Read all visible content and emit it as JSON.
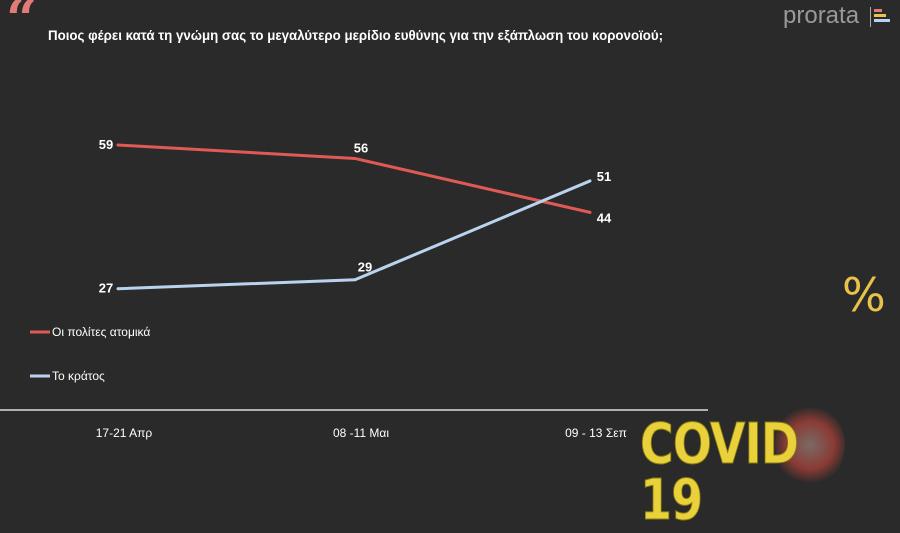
{
  "header": {
    "quote_mark": "“",
    "title": "Ποιος φέρει κατά τη γνώμη σας το μεγαλύτερο μερίδιο ευθύνης για την εξάπλωση του κορονοϊού;",
    "logo": "prorata"
  },
  "decor": {
    "percent": "%",
    "covid": "COVID 19"
  },
  "chart_data": {
    "type": "line",
    "title": "Ποιος φέρει κατά τη γνώμη σας το μεγαλύτερο μερίδιο ευθύνης για την εξάπλωση του κορονοϊού;",
    "categories": [
      "17-21 Απρ",
      "08 -11 Μαι",
      "09 - 13 Σεπ"
    ],
    "series": [
      {
        "name": "Οι πολίτες ατομικά",
        "values": [
          59,
          56,
          44
        ],
        "color": "#e05a55"
      },
      {
        "name": "Το κράτος",
        "values": [
          27,
          29,
          51
        ],
        "color": "#b9d3ee"
      }
    ],
    "ylim": [
      0,
      59
    ],
    "grid": false,
    "legend": "left"
  }
}
